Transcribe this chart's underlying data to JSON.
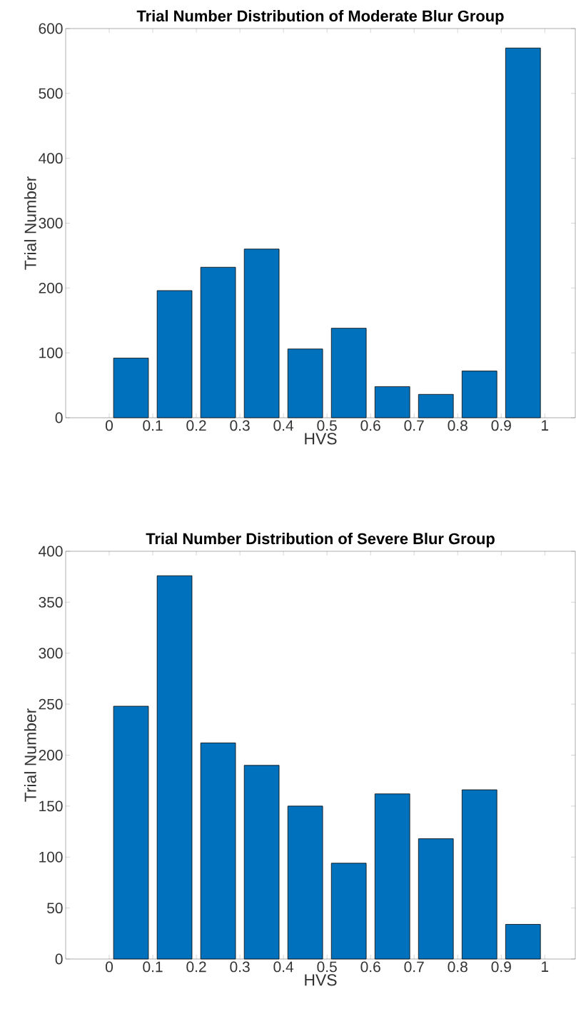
{
  "chart_data": [
    {
      "type": "histogram",
      "title": "Trial Number Distribution of Moderate Blur Group",
      "xlabel": "HVS",
      "ylabel": "Trial Number",
      "color": "#0072bd",
      "bins": [
        0,
        0.1,
        0.2,
        0.3,
        0.4,
        0.5,
        0.6,
        0.7,
        0.8,
        0.9,
        1
      ],
      "values": [
        92,
        196,
        232,
        260,
        106,
        138,
        48,
        36,
        72,
        570
      ],
      "xlim": [
        -0.1,
        1.07
      ],
      "ylim": [
        0,
        600
      ],
      "xticks": [
        0,
        0.1,
        0.2,
        0.3,
        0.4,
        0.5,
        0.6,
        0.7,
        0.8,
        0.9,
        1
      ],
      "yticks": [
        0,
        100,
        200,
        300,
        400,
        500,
        600
      ]
    },
    {
      "type": "histogram",
      "title": "Trial Number Distribution of Severe Blur Group",
      "xlabel": "HVS",
      "ylabel": "Trial Number",
      "color": "#0072bd",
      "bins": [
        0,
        0.1,
        0.2,
        0.3,
        0.4,
        0.5,
        0.6,
        0.7,
        0.8,
        0.9,
        1
      ],
      "values": [
        248,
        376,
        212,
        190,
        150,
        94,
        162,
        118,
        166,
        34
      ],
      "xlim": [
        -0.1,
        1.07
      ],
      "ylim": [
        0,
        400
      ],
      "xticks": [
        0,
        0.1,
        0.2,
        0.3,
        0.4,
        0.5,
        0.6,
        0.7,
        0.8,
        0.9,
        1
      ],
      "yticks": [
        0,
        50,
        100,
        150,
        200,
        250,
        300,
        350,
        400
      ]
    }
  ]
}
